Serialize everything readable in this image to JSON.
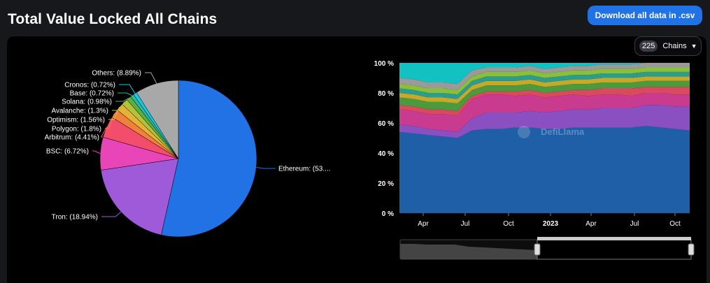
{
  "header": {
    "title": "Total Value Locked All Chains",
    "download_label": "Download all data in .csv"
  },
  "chains_selector": {
    "count": "225",
    "label": "Chains"
  },
  "watermark": "DefiLlama",
  "colors": {
    "background": "#17181c",
    "card": "#000000",
    "accent": "#2172e5"
  },
  "chart_data": [
    {
      "type": "pie",
      "slices": [
        {
          "label": "Ethereum: (53....",
          "value": 53.0,
          "color": "#2172e5"
        },
        {
          "label": "Tron: (18.94%)",
          "value": 18.94,
          "color": "#9e5ad8"
        },
        {
          "label": "BSC: (6.72%)",
          "value": 6.72,
          "color": "#e846b8"
        },
        {
          "label": "Arbitrum: (4.41%)",
          "value": 4.41,
          "color": "#f24e6b"
        },
        {
          "label": "Polygon: (1.8%)",
          "value": 1.8,
          "color": "#f0803a"
        },
        {
          "label": "Optimism: (1.56%)",
          "value": 1.56,
          "color": "#e4b236"
        },
        {
          "label": "Avalanche: (1.3%)",
          "value": 1.3,
          "color": "#b4c23a"
        },
        {
          "label": "Solana: (0.98%)",
          "value": 0.98,
          "color": "#5cb040"
        },
        {
          "label": "Base: (0.72%)",
          "value": 0.72,
          "color": "#2ab8a0"
        },
        {
          "label": "Cronos: (0.72%)",
          "value": 0.72,
          "color": "#17c9e6"
        },
        {
          "label": "Others: (8.89%)",
          "value": 8.89,
          "color": "#a8a8a8"
        }
      ]
    },
    {
      "type": "area",
      "stacked": true,
      "normalized": true,
      "y_ticks": [
        "0 %",
        "20 %",
        "40 %",
        "60 %",
        "80 %",
        "100 %"
      ],
      "ylim": [
        0,
        100
      ],
      "x_ticks": [
        "Apr",
        "Jul",
        "Oct",
        "2023",
        "Apr",
        "Jul",
        "Oct"
      ],
      "x": [
        0,
        5,
        10,
        15,
        20,
        25,
        30,
        35,
        40,
        45,
        50,
        55,
        60,
        65,
        70,
        75,
        80,
        85,
        90,
        95,
        100
      ],
      "series": [
        {
          "color": "#1e5fa8",
          "values": [
            54,
            53,
            52,
            51,
            50,
            55,
            56,
            56,
            57,
            57,
            56,
            56,
            57,
            57,
            57,
            57,
            57,
            58,
            57,
            56,
            55
          ]
        },
        {
          "color": "#8a4fc0",
          "values": [
            5,
            5,
            4,
            4,
            4,
            8,
            11,
            11,
            10,
            11,
            11,
            12,
            12,
            12,
            13,
            13,
            13,
            14,
            15,
            15,
            16
          ]
        },
        {
          "color": "#c93b8e",
          "values": [
            10,
            10,
            10,
            11,
            11,
            13,
            12,
            12,
            11,
            11,
            10,
            10,
            10,
            9,
            9,
            9,
            8,
            8,
            8,
            8,
            8
          ]
        },
        {
          "color": "#d94a5e",
          "values": [
            3,
            3,
            3,
            3,
            3,
            2,
            2,
            2,
            3,
            3,
            3,
            3,
            3,
            4,
            4,
            4,
            5,
            4,
            4,
            5,
            5
          ]
        },
        {
          "color": "#4c9a3e",
          "values": [
            5,
            5,
            5,
            5,
            5,
            4,
            4,
            4,
            4,
            4,
            4,
            4,
            4,
            4,
            4,
            4,
            4,
            4,
            4,
            4,
            4
          ]
        },
        {
          "color": "#c7a92a",
          "values": [
            3,
            3,
            3,
            3,
            3,
            3,
            3,
            3,
            3,
            3,
            3,
            3,
            3,
            3,
            3,
            3,
            3,
            3,
            3,
            3,
            3
          ]
        },
        {
          "color": "#2a9d8f",
          "values": [
            3,
            3,
            3,
            3,
            3,
            3,
            3,
            3,
            3,
            3,
            3,
            3,
            3,
            3,
            3,
            3,
            3,
            3,
            3,
            3,
            3
          ]
        },
        {
          "color": "#8bbf3a",
          "values": [
            3,
            3,
            3,
            3,
            3,
            3,
            3,
            3,
            3,
            3,
            3,
            3,
            3,
            3,
            3,
            3,
            3,
            3,
            3,
            3,
            3
          ]
        },
        {
          "color": "#9a9a9a",
          "values": [
            4,
            4,
            4,
            4,
            4,
            4,
            3,
            3,
            3,
            3,
            3,
            3,
            3,
            3,
            3,
            3,
            3,
            3,
            3,
            3,
            3
          ]
        },
        {
          "color": "#12c2c2",
          "values": [
            10,
            11,
            13,
            15,
            14,
            5,
            3,
            3,
            3,
            2,
            4,
            3,
            2,
            2,
            1,
            1,
            1,
            0,
            0,
            0,
            0
          ]
        }
      ]
    }
  ]
}
